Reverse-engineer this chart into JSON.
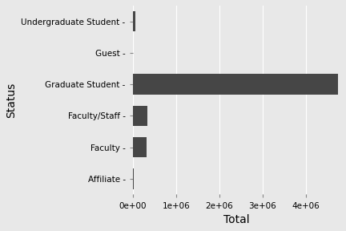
{
  "categories": [
    "Affiliate",
    "Faculty",
    "Faculty/Staff",
    "Graduate Student",
    "Guest",
    "Undergraduate Student"
  ],
  "values": [
    18000,
    310000,
    330000,
    4750000,
    8000,
    55000
  ],
  "bar_color": "#464646",
  "background_color": "#e8e8e8",
  "panel_background": "#e8e8e8",
  "grid_color": "#ffffff",
  "xlabel": "Total",
  "ylabel": "Status",
  "xlim": [
    0,
    4800000
  ],
  "xticks": [
    0,
    1000000,
    2000000,
    3000000,
    4000000
  ],
  "tick_label_fontsize": 7.5,
  "axis_label_fontsize": 10
}
